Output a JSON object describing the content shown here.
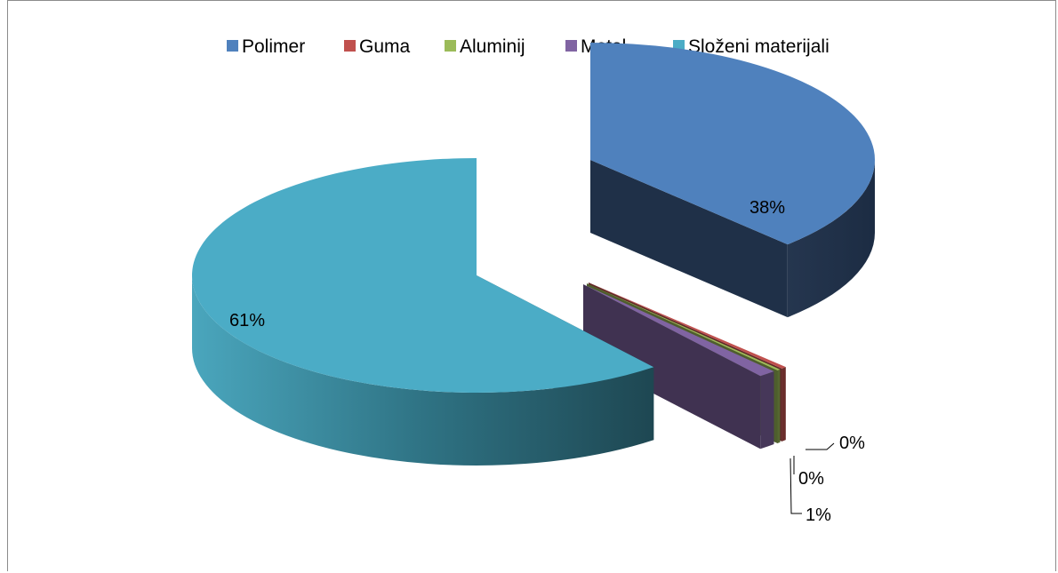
{
  "chart_data": {
    "type": "pie",
    "style": "3d-exploded",
    "title": "",
    "legend_position": "top",
    "categories": [
      "Polimer",
      "Guma",
      "Aluminij",
      "Metal",
      "Složeni materijali"
    ],
    "values": [
      38,
      0.3,
      0.2,
      1,
      61
    ],
    "labels": [
      "38%",
      "0%",
      "0%",
      "1%",
      "61%"
    ],
    "colors": [
      "#4F81BD",
      "#C0504D",
      "#9BBB59",
      "#8064A2",
      "#4BACC6"
    ]
  }
}
